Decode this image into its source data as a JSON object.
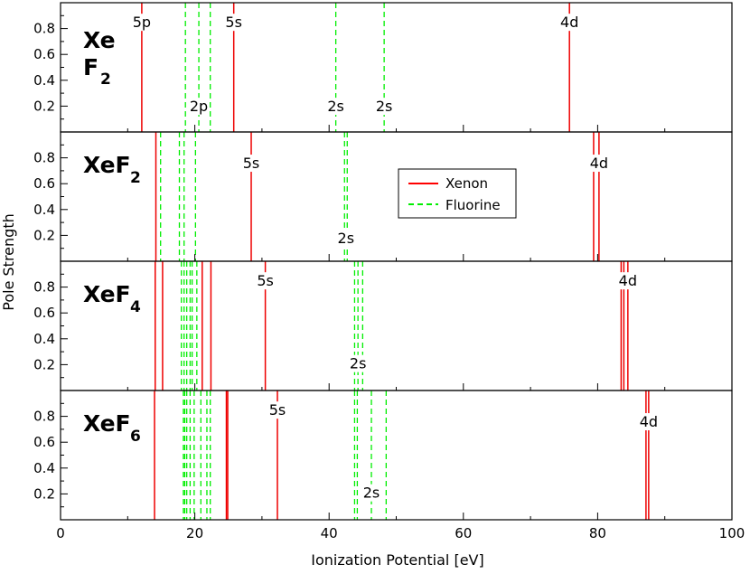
{
  "chart_data": {
    "type": "spectrum-stick",
    "xlabel": "Ionization Potential [eV]",
    "ylabel": "Pole Strength",
    "xlim": [
      0,
      100
    ],
    "ylim": [
      0,
      1
    ],
    "x_ticks": [
      0,
      20,
      40,
      60,
      80,
      100
    ],
    "x_tick_labels": [
      "0",
      "20",
      "40",
      "60",
      "80",
      "100"
    ],
    "y_ticks": [
      0.2,
      0.4,
      0.6,
      0.8
    ],
    "y_tick_labels": [
      "0.2",
      "0.4",
      "0.6",
      "0.8"
    ],
    "grid": false,
    "legend": {
      "placement": "inside panel 2, center-right",
      "entries": [
        {
          "label": "Xenon",
          "color": "#ff0000",
          "style": "solid"
        },
        {
          "label": "Fluorine",
          "color": "#00ee00",
          "style": "dashed"
        }
      ]
    },
    "panels": [
      {
        "molecule": "XeF2",
        "label_main": "Xe",
        "label_line2": "F",
        "label_sub": "2",
        "xenon": [
          12.1,
          25.8,
          75.8
        ],
        "fluorine": [
          18.6,
          20.6,
          22.3,
          41.0,
          48.2
        ],
        "annotations": [
          {
            "text": "5p",
            "x": 12.1,
            "y": 0.81
          },
          {
            "text": "5s",
            "x": 25.8,
            "y": 0.81
          },
          {
            "text": "4d",
            "x": 75.8,
            "y": 0.81
          },
          {
            "text": "2p",
            "x": 20.6,
            "y": 0.16
          },
          {
            "text": "2s",
            "x": 41.0,
            "y": 0.16
          },
          {
            "text": "2s",
            "x": 48.2,
            "y": 0.16
          }
        ]
      },
      {
        "molecule": "XeF2",
        "label_main": "XeF",
        "label_sub": "2",
        "xenon": [
          14.2,
          28.4,
          79.4,
          80.2
        ],
        "fluorine": [
          14.9,
          17.7,
          18.4,
          20.1,
          42.3,
          42.7
        ],
        "annotations": [
          {
            "text": "5s",
            "x": 28.4,
            "y": 0.72
          },
          {
            "text": "4d",
            "x": 80.2,
            "y": 0.72
          },
          {
            "text": "2s",
            "x": 42.5,
            "y": 0.14
          }
        ]
      },
      {
        "molecule": "XeF4",
        "label_main": "XeF",
        "label_sub": "4",
        "xenon": [
          14.1,
          15.2,
          21.1,
          22.4,
          30.5,
          83.5,
          83.9,
          84.5
        ],
        "fluorine": [
          18.0,
          18.4,
          18.8,
          19.3,
          19.6,
          20.3,
          43.8,
          44.3,
          45.0
        ],
        "annotations": [
          {
            "text": "5s",
            "x": 30.5,
            "y": 0.81
          },
          {
            "text": "4d",
            "x": 84.5,
            "y": 0.81
          },
          {
            "text": "2s",
            "x": 44.3,
            "y": 0.17
          }
        ]
      },
      {
        "molecule": "XeF6",
        "label_main": "XeF",
        "label_sub": "6",
        "xenon": [
          14.0,
          24.7,
          24.9,
          32.3,
          87.2,
          87.6
        ],
        "fluorine": [
          18.3,
          18.5,
          18.8,
          19.3,
          19.9,
          20.9,
          21.8,
          22.3,
          43.8,
          44.2,
          46.3,
          48.5
        ],
        "annotations": [
          {
            "text": "5s",
            "x": 32.3,
            "y": 0.81
          },
          {
            "text": "4d",
            "x": 87.6,
            "y": 0.72
          },
          {
            "text": "2s",
            "x": 46.3,
            "y": 0.17
          }
        ]
      }
    ]
  }
}
